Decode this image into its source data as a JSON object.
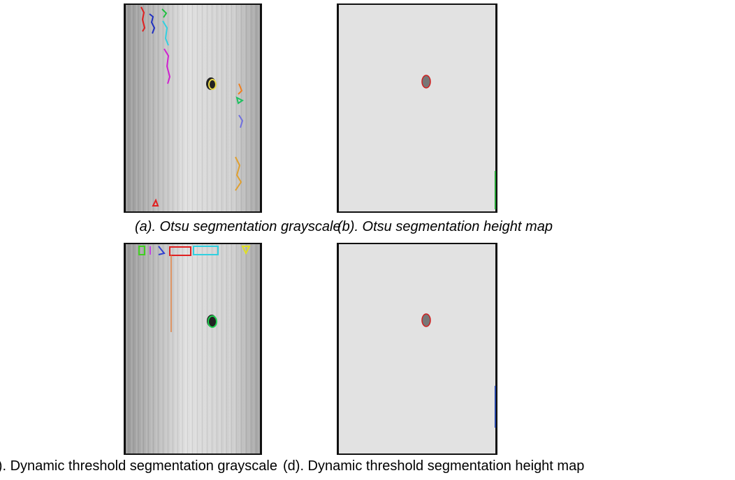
{
  "figure": {
    "panels": [
      {
        "caption": "(a). Otsu segmentation grayscale"
      },
      {
        "caption": "(b). Otsu segmentation height map"
      },
      {
        "caption": "(c). Dynamic threshold segmentation grayscale"
      },
      {
        "caption": "(d). Dynamic threshold segmentation height map"
      }
    ]
  }
}
